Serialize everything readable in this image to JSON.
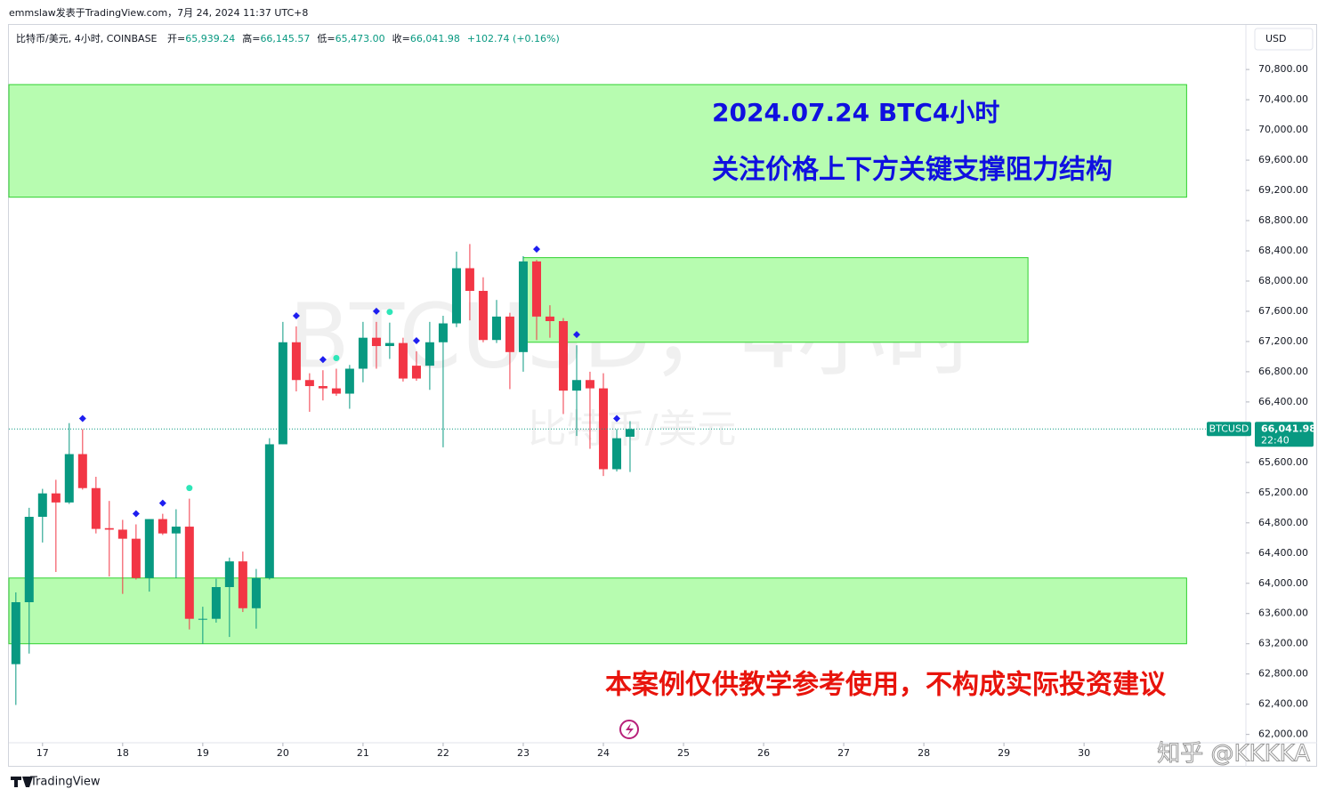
{
  "header": {
    "byline": "emmslaw发表于TradingView.com，7月 24, 2024 11:37 UTC+8",
    "symbol": "比特币/美元, 4小时, COINBASE",
    "ohlc": [
      {
        "label": "开=",
        "value": "65,939.24"
      },
      {
        "label": "高=",
        "value": "66,145.57"
      },
      {
        "label": "低=",
        "value": "65,473.00"
      },
      {
        "label": "收=",
        "value": "66,041.98"
      }
    ],
    "change": "+102.74 (+0.16%)",
    "currency": "USD"
  },
  "chart_data": {
    "type": "candlestick",
    "watermark": [
      "BTCUSD，4小时",
      "比特币/美元"
    ],
    "x": [
      16.667,
      16.833,
      17,
      17.167,
      17.333,
      17.5,
      17.667,
      17.833,
      18,
      18.167,
      18.333,
      18.5,
      18.667,
      18.833,
      19,
      19.167,
      19.333,
      19.5,
      19.667,
      19.833,
      20,
      20.167,
      20.333,
      20.5,
      20.667,
      20.833,
      21,
      21.167,
      21.333,
      21.5,
      21.667,
      21.833,
      22,
      22.167,
      22.333,
      22.5,
      22.667,
      22.833,
      23,
      23.167,
      23.333,
      23.5,
      23.667,
      23.833,
      24,
      24.167,
      24.333
    ],
    "open": [
      62930,
      63750,
      64880,
      65190,
      65070,
      65710,
      65260,
      64730,
      64710,
      64590,
      64070,
      64850,
      64660,
      64750,
      63520,
      63530,
      63950,
      64290,
      63670,
      64070,
      65840,
      67190,
      66690,
      66610,
      66580,
      66510,
      66840,
      67250,
      67140,
      67180,
      66880,
      66880,
      67190,
      67440,
      68170,
      67870,
      67220,
      67530,
      67060,
      68260,
      67530,
      67470,
      66550,
      66690,
      66580,
      65510,
      65939.24
    ],
    "high": [
      63880,
      65000,
      65250,
      65370,
      66120,
      66040,
      65410,
      65090,
      64840,
      64780,
      64850,
      64920,
      64980,
      65120,
      63690,
      64060,
      64340,
      64420,
      64190,
      65920,
      67460,
      67400,
      66780,
      66820,
      66840,
      66890,
      67460,
      67460,
      67450,
      67250,
      67070,
      67460,
      67540,
      68390,
      68490,
      68050,
      67750,
      67580,
      68330,
      68280,
      67680,
      67510,
      67150,
      66800,
      66780,
      66040,
      66145.57
    ],
    "low": [
      62390,
      63070,
      64540,
      64150,
      65050,
      65240,
      64660,
      64090,
      63860,
      64050,
      63890,
      64640,
      64070,
      63390,
      63200,
      63480,
      63290,
      63620,
      63400,
      64050,
      65840,
      66540,
      66270,
      66420,
      66480,
      66310,
      66660,
      66840,
      66970,
      66670,
      66680,
      66560,
      65800,
      67390,
      67480,
      67190,
      67180,
      66570,
      66800,
      67220,
      67250,
      66240,
      65950,
      65780,
      65420,
      65480,
      65473.0
    ],
    "close": [
      63750,
      64880,
      65190,
      65070,
      65710,
      65260,
      64720,
      64710,
      64590,
      64070,
      64850,
      64660,
      64750,
      63530,
      63530,
      63950,
      64290,
      63670,
      64070,
      65840,
      67190,
      66690,
      66610,
      66580,
      66510,
      66840,
      67250,
      67140,
      67180,
      66710,
      66710,
      67190,
      67440,
      68170,
      67870,
      67220,
      67530,
      67060,
      68260,
      67530,
      67470,
      66550,
      66690,
      66580,
      65510,
      65920,
      66041.98
    ],
    "up_color": "#089981",
    "down_color": "#f23645",
    "signals": {
      "diamond": [
        5,
        9,
        11,
        21,
        23,
        27,
        30,
        39,
        42,
        45
      ],
      "circle": [
        13,
        24,
        28
      ],
      "diamond_color": "#1e1ef0",
      "circle_color": "#2ee6b8"
    },
    "zones": [
      {
        "x": [
          16.58,
          31.28
        ],
        "y": [
          69110,
          70600
        ]
      },
      {
        "x": [
          23.0,
          29.3
        ],
        "y": [
          67190,
          68310
        ]
      },
      {
        "x": [
          16.58,
          31.28
        ],
        "y": [
          63200,
          64070
        ]
      }
    ],
    "zone_color": "#b7fcb0",
    "xlim": [
      16.58,
      32.02
    ],
    "xticks": [
      17,
      18,
      19,
      20,
      21,
      22,
      23,
      24,
      25,
      26,
      27,
      28,
      29,
      30
    ],
    "ylim": [
      61890,
      71390
    ],
    "yticks": [
      {
        "value": 62000,
        "label": "62,000.00"
      },
      {
        "value": 62400,
        "label": "62,400.00"
      },
      {
        "value": 62800,
        "label": "62,800.00"
      },
      {
        "value": 63200,
        "label": "63,200.00"
      },
      {
        "value": 63600,
        "label": "63,600.00"
      },
      {
        "value": 64000,
        "label": "64,000.00"
      },
      {
        "value": 64400,
        "label": "64,400.00"
      },
      {
        "value": 64800,
        "label": "64,800.00"
      },
      {
        "value": 65200,
        "label": "65,200.00"
      },
      {
        "value": 65600,
        "label": "65,600.00"
      },
      {
        "value": 66000,
        "label": "66,000.00"
      },
      {
        "value": 66400,
        "label": "66,400.00"
      },
      {
        "value": 66800,
        "label": "66,800.00"
      },
      {
        "value": 67200,
        "label": "67,200.00"
      },
      {
        "value": 67600,
        "label": "67,600.00"
      },
      {
        "value": 68000,
        "label": "68,000.00"
      },
      {
        "value": 68400,
        "label": "68,400.00"
      },
      {
        "value": 68800,
        "label": "68,800.00"
      },
      {
        "value": 69200,
        "label": "69,200.00"
      },
      {
        "value": 69600,
        "label": "69,600.00"
      },
      {
        "value": 70000,
        "label": "70,000.00"
      },
      {
        "value": 70400,
        "label": "70,400.00"
      },
      {
        "value": 70800,
        "label": "70,800.00"
      }
    ],
    "last_price": {
      "tag": "BTCUSD",
      "label": "66,041.98",
      "countdown": "22:40"
    }
  },
  "annotations": {
    "title": "2024.07.24 BTC4小时",
    "subtitle": "关注价格上下方关键支撑阻力结构",
    "disclaimer": "本案例仅供教学参考使用，不构成实际投资建议"
  },
  "footer": {
    "brand": "TradingView",
    "watermark": "知乎 @KKKKA"
  }
}
